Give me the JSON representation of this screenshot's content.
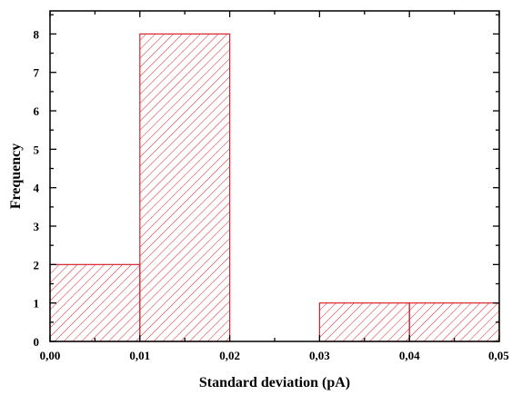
{
  "chart_data": {
    "type": "bar",
    "subtype": "histogram",
    "title": "",
    "xlabel": "Standard deviation (pA)",
    "ylabel": "Frequency",
    "bins": [
      {
        "start": 0.0,
        "end": 0.01,
        "value": 2
      },
      {
        "start": 0.01,
        "end": 0.02,
        "value": 8
      },
      {
        "start": 0.02,
        "end": 0.03,
        "value": 0
      },
      {
        "start": 0.03,
        "end": 0.04,
        "value": 1
      },
      {
        "start": 0.04,
        "end": 0.05,
        "value": 1
      }
    ],
    "xlim": [
      0,
      0.05
    ],
    "ylim": [
      0,
      8.6
    ],
    "x_ticks": [
      "0,00",
      "0,01",
      "0,02",
      "0,03",
      "0,04",
      "0,05"
    ],
    "y_ticks": [
      "0",
      "1",
      "2",
      "3",
      "4",
      "5",
      "6",
      "7",
      "8"
    ],
    "bar_fill": "hatched",
    "bar_color": "#d9232e",
    "grid": false
  }
}
